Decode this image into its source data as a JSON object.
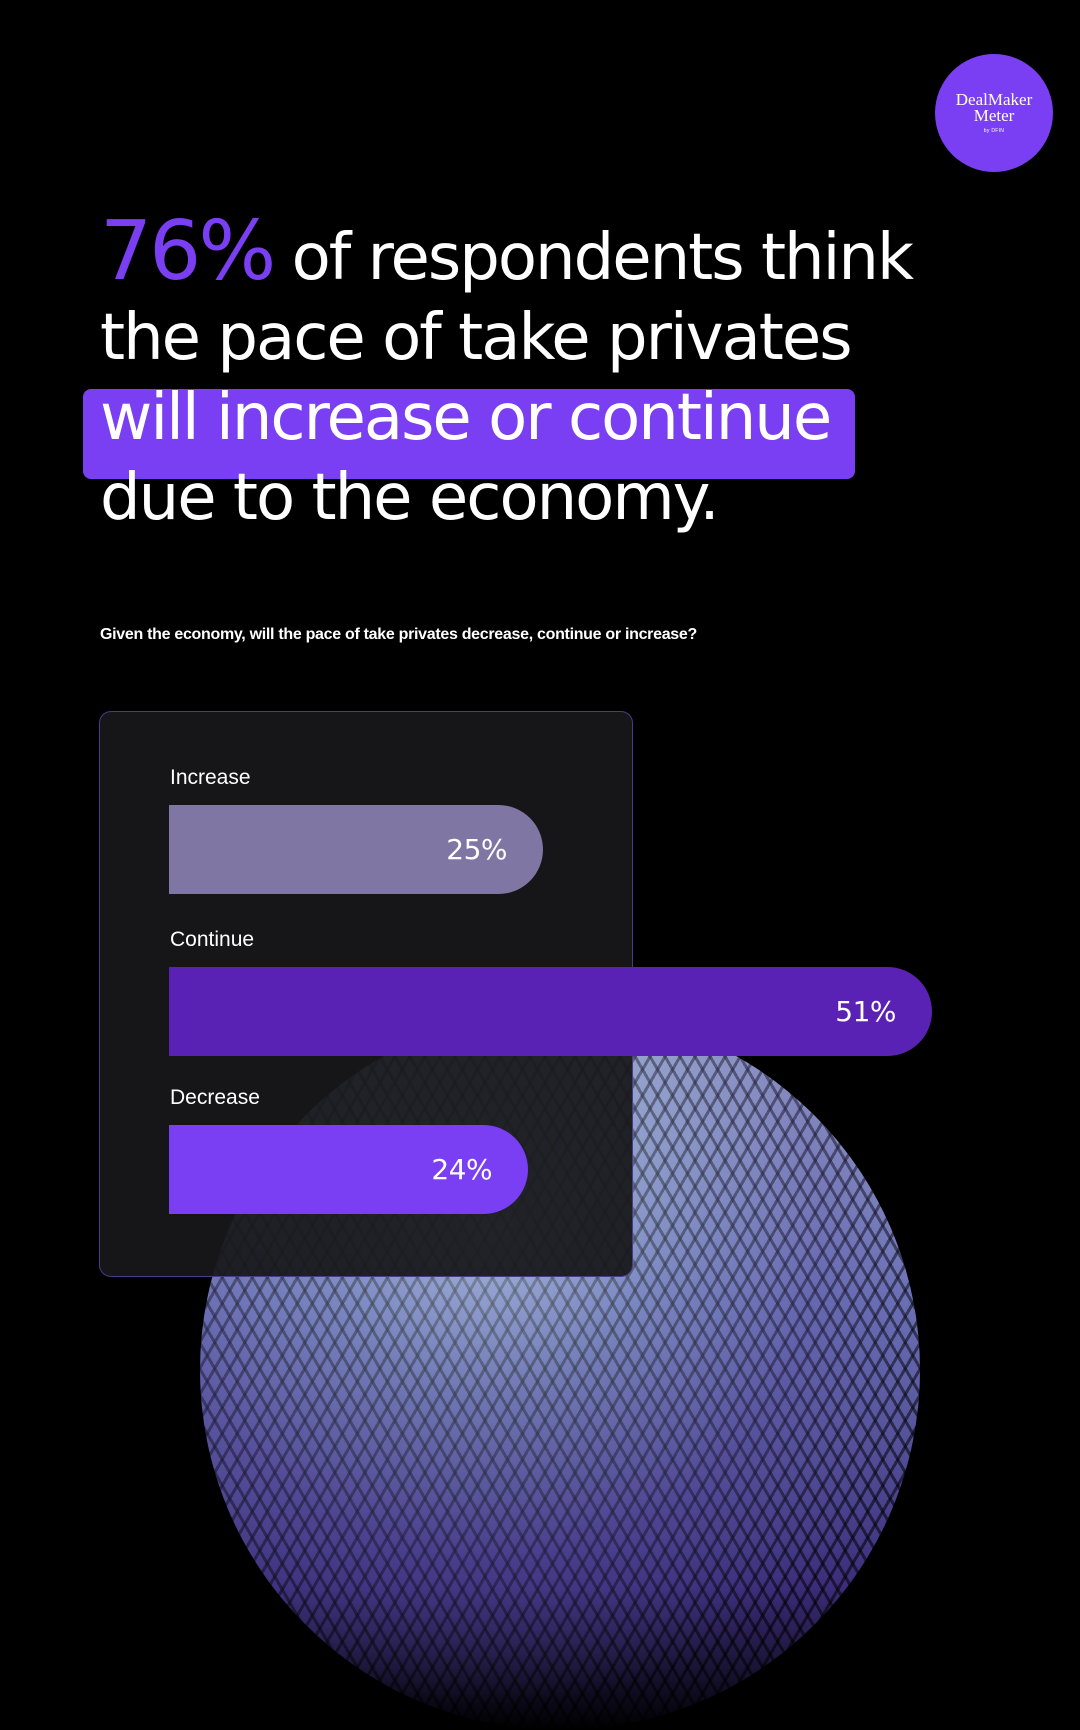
{
  "brand": {
    "line1": "DealMaker",
    "line2": "Meter",
    "line3": "by DFIN",
    "color": "#7a3ff2"
  },
  "headline": {
    "percent": "76%",
    "line1_rest": " of respondents think",
    "line2": "the pace of take privates",
    "line3": "will increase or continue",
    "line4": "due to the economy."
  },
  "chart_data": {
    "type": "bar",
    "orientation": "horizontal",
    "title": "Given the economy, will the pace of take privates decrease, continue or increase?",
    "categories": [
      "Increase",
      "Continue",
      "Decrease"
    ],
    "values": [
      25,
      51,
      24
    ],
    "value_labels": [
      "25%",
      "51%",
      "24%"
    ],
    "unit": "%",
    "colors": [
      "#7f76a3",
      "#5a22b4",
      "#7a3ff2"
    ],
    "grid": false,
    "legend": "none"
  }
}
